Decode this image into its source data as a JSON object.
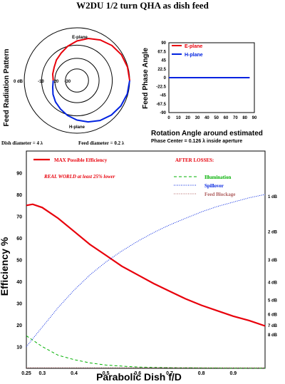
{
  "page_title": "W2DU 1/2 turn QHA as dish feed",
  "chart_data": [
    {
      "type": "polar",
      "ylabel": "Feed Radiation Pattern",
      "ring_labels": [
        "0 dB",
        "-10",
        "-20",
        "-30"
      ],
      "annotations": [
        "E-plane",
        "H-plane"
      ],
      "footer": [
        "Dish diameter = 4 λ",
        "Feed diameter = 0.2 λ"
      ],
      "series": [
        {
          "name": "E-plane",
          "color": "#e8000b",
          "pattern_db": [
            [
              0,
              0
            ],
            [
              15,
              -0.3
            ],
            [
              30,
              -1
            ],
            [
              45,
              -2.5
            ],
            [
              60,
              -4.5
            ],
            [
              75,
              -7
            ],
            [
              90,
              -10
            ],
            [
              105,
              -13
            ],
            [
              120,
              -16
            ],
            [
              135,
              -18
            ],
            [
              150,
              -20
            ],
            [
              165,
              -21
            ],
            [
              180,
              -22
            ]
          ]
        },
        {
          "name": "H-plane",
          "color": "#0022e0",
          "pattern_db": [
            [
              0,
              0
            ],
            [
              15,
              -0.5
            ],
            [
              30,
              -1.5
            ],
            [
              45,
              -3
            ],
            [
              60,
              -5
            ],
            [
              75,
              -7.5
            ],
            [
              90,
              -10
            ],
            [
              105,
              -12.5
            ],
            [
              120,
              -15
            ],
            [
              135,
              -17
            ],
            [
              150,
              -19
            ],
            [
              165,
              -21
            ],
            [
              180,
              -22
            ]
          ]
        }
      ]
    },
    {
      "type": "line",
      "ylabel": "Feed Phase Angle",
      "xlabel": "Rotation Angle around estimated",
      "xlabel2": "Phase Center = 0.126 λ inside aperture",
      "xlim": [
        0,
        90
      ],
      "ylim": [
        -90,
        90
      ],
      "xticks": [
        "0",
        "10",
        "20",
        "30",
        "40",
        "50",
        "60",
        "70",
        "80",
        "90"
      ],
      "yticks": [
        "90",
        "67.5",
        "45",
        "22.5",
        "0",
        "-22.5",
        "-45",
        "-67.5",
        "-90"
      ],
      "series": [
        {
          "name": "E-plane",
          "color": "#e8000b",
          "x": [
            0,
            85
          ],
          "y": [
            0,
            0
          ]
        },
        {
          "name": "H-plane",
          "color": "#0022e0",
          "x": [
            0,
            85
          ],
          "y": [
            0,
            0
          ]
        }
      ]
    },
    {
      "type": "line",
      "xlabel": "Parabolic Dish f/D",
      "ylabel": "Efficiency %",
      "xlim": [
        0.25,
        1.0
      ],
      "ylim": [
        0,
        100
      ],
      "xticks": [
        "0.25",
        "0.3",
        "0.4",
        "0.5",
        "0.6",
        "0.7",
        "0.8",
        "0.9"
      ],
      "yticks": [
        "10",
        "20",
        "30",
        "40",
        "50",
        "60",
        "70",
        "80",
        "90"
      ],
      "right_ticks": [
        {
          "label": "1 dB",
          "value": 79.4
        },
        {
          "label": "2 dB",
          "value": 63.1
        },
        {
          "label": "3 dB",
          "value": 50.1
        },
        {
          "label": "4 dB",
          "value": 39.8
        },
        {
          "label": "5 dB",
          "value": 31.6
        },
        {
          "label": "6 dB",
          "value": 25.1
        },
        {
          "label": "7 dB",
          "value": 20.0
        },
        {
          "label": "8 dB",
          "value": 15.8
        }
      ],
      "legend_left": {
        "label": "MAX Possible Efficiency",
        "note": "REAL WORLD at least 25% lower"
      },
      "legend_right_title": "AFTER LOSSES:",
      "series": [
        {
          "name": "MAX Possible Efficiency",
          "color": "#e8000b",
          "dash": "solid",
          "x": [
            0.25,
            0.27,
            0.3,
            0.35,
            0.4,
            0.45,
            0.5,
            0.55,
            0.6,
            0.65,
            0.7,
            0.75,
            0.8,
            0.85,
            0.9,
            0.95,
            1.0
          ],
          "y": [
            75,
            75.5,
            74,
            69,
            63,
            57,
            52,
            47,
            43,
            39,
            35.5,
            32,
            29,
            26.5,
            24,
            22,
            19.5
          ]
        },
        {
          "name": "Illumination",
          "color": "#00b000",
          "dash": "dashed",
          "x": [
            0.25,
            0.3,
            0.35,
            0.4,
            0.45,
            0.5,
            0.55,
            0.6,
            0.7,
            0.8,
            0.9,
            1.0
          ],
          "y": [
            15,
            10,
            6,
            4,
            2.5,
            1.5,
            1,
            0.6,
            0.3,
            0.2,
            0.1,
            0.1
          ]
        },
        {
          "name": "Spillover",
          "color": "#0022e0",
          "dash": "dotted",
          "x": [
            0.25,
            0.3,
            0.35,
            0.4,
            0.45,
            0.5,
            0.55,
            0.6,
            0.65,
            0.7,
            0.75,
            0.8,
            0.85,
            0.9,
            0.95,
            1.0
          ],
          "y": [
            10,
            19,
            28,
            36,
            43,
            49,
            54,
            58.5,
            62.5,
            66,
            69,
            72,
            74.5,
            76.5,
            78.5,
            80
          ]
        },
        {
          "name": "Feed Blockage",
          "color": "#b06060",
          "dash": "dotted",
          "x": [
            0.25,
            0.4,
            0.6,
            0.8,
            1.0
          ],
          "y": [
            0.3,
            0.3,
            0.3,
            0.3,
            0.3
          ]
        }
      ]
    }
  ]
}
